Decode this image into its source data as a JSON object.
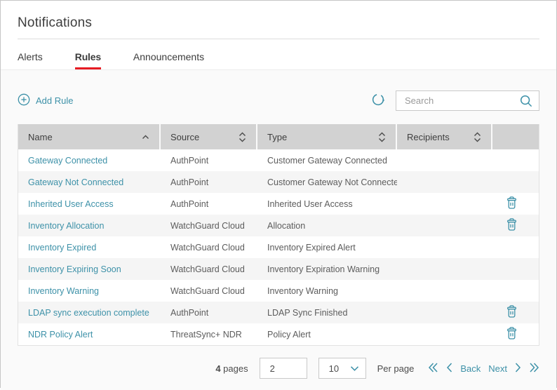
{
  "page": {
    "title": "Notifications"
  },
  "tabs": [
    {
      "label": "Alerts",
      "active": false
    },
    {
      "label": "Rules",
      "active": true
    },
    {
      "label": "Announcements",
      "active": false
    }
  ],
  "toolbar": {
    "add_rule_label": "Add Rule",
    "add_icon": "plus-circle-icon",
    "refresh_icon": "refresh-icon",
    "search_placeholder": "Search",
    "search_icon": "magnifier-icon"
  },
  "table": {
    "columns": [
      {
        "label": "Name",
        "sort": "asc"
      },
      {
        "label": "Source",
        "sort": "both"
      },
      {
        "label": "Type",
        "sort": "both"
      },
      {
        "label": "Recipients",
        "sort": "both"
      },
      {
        "label": "",
        "sort": "none"
      }
    ],
    "rows": [
      {
        "name": "Gateway Connected",
        "source": "AuthPoint",
        "type": "Customer Gateway Connected",
        "recipients": "",
        "deletable": false
      },
      {
        "name": "Gateway Not Connected",
        "source": "AuthPoint",
        "type": "Customer Gateway Not Connected",
        "recipients": "",
        "deletable": false
      },
      {
        "name": "Inherited User Access",
        "source": "AuthPoint",
        "type": "Inherited User Access",
        "recipients": "",
        "deletable": true
      },
      {
        "name": "Inventory Allocation",
        "source": "WatchGuard Cloud",
        "type": "Allocation",
        "recipients": "",
        "deletable": true
      },
      {
        "name": "Inventory Expired",
        "source": "WatchGuard Cloud",
        "type": "Inventory Expired Alert",
        "recipients": "",
        "deletable": false
      },
      {
        "name": "Inventory Expiring Soon",
        "source": "WatchGuard Cloud",
        "type": "Inventory Expiration Warning",
        "recipients": "",
        "deletable": false
      },
      {
        "name": "Inventory Warning",
        "source": "WatchGuard Cloud",
        "type": "Inventory Warning",
        "recipients": "",
        "deletable": false
      },
      {
        "name": "LDAP sync execution complete",
        "source": "AuthPoint",
        "type": "LDAP Sync Finished",
        "recipients": "",
        "deletable": true
      },
      {
        "name": "NDR Policy Alert",
        "source": "ThreatSync+ NDR",
        "type": "Policy Alert",
        "recipients": "",
        "deletable": true
      }
    ],
    "delete_icon": "trash-icon"
  },
  "pagination": {
    "total_pages": "4",
    "pages_label": "pages",
    "current_page": "2",
    "per_page_value": "10",
    "per_page_label": "Per page",
    "back_label": "Back",
    "next_label": "Next"
  },
  "colors": {
    "accent_teal": "#3d91a8",
    "active_tab_red": "#e61b23",
    "table_header_bg": "#d2d2d2",
    "alt_row_bg": "#f5f5f5"
  }
}
